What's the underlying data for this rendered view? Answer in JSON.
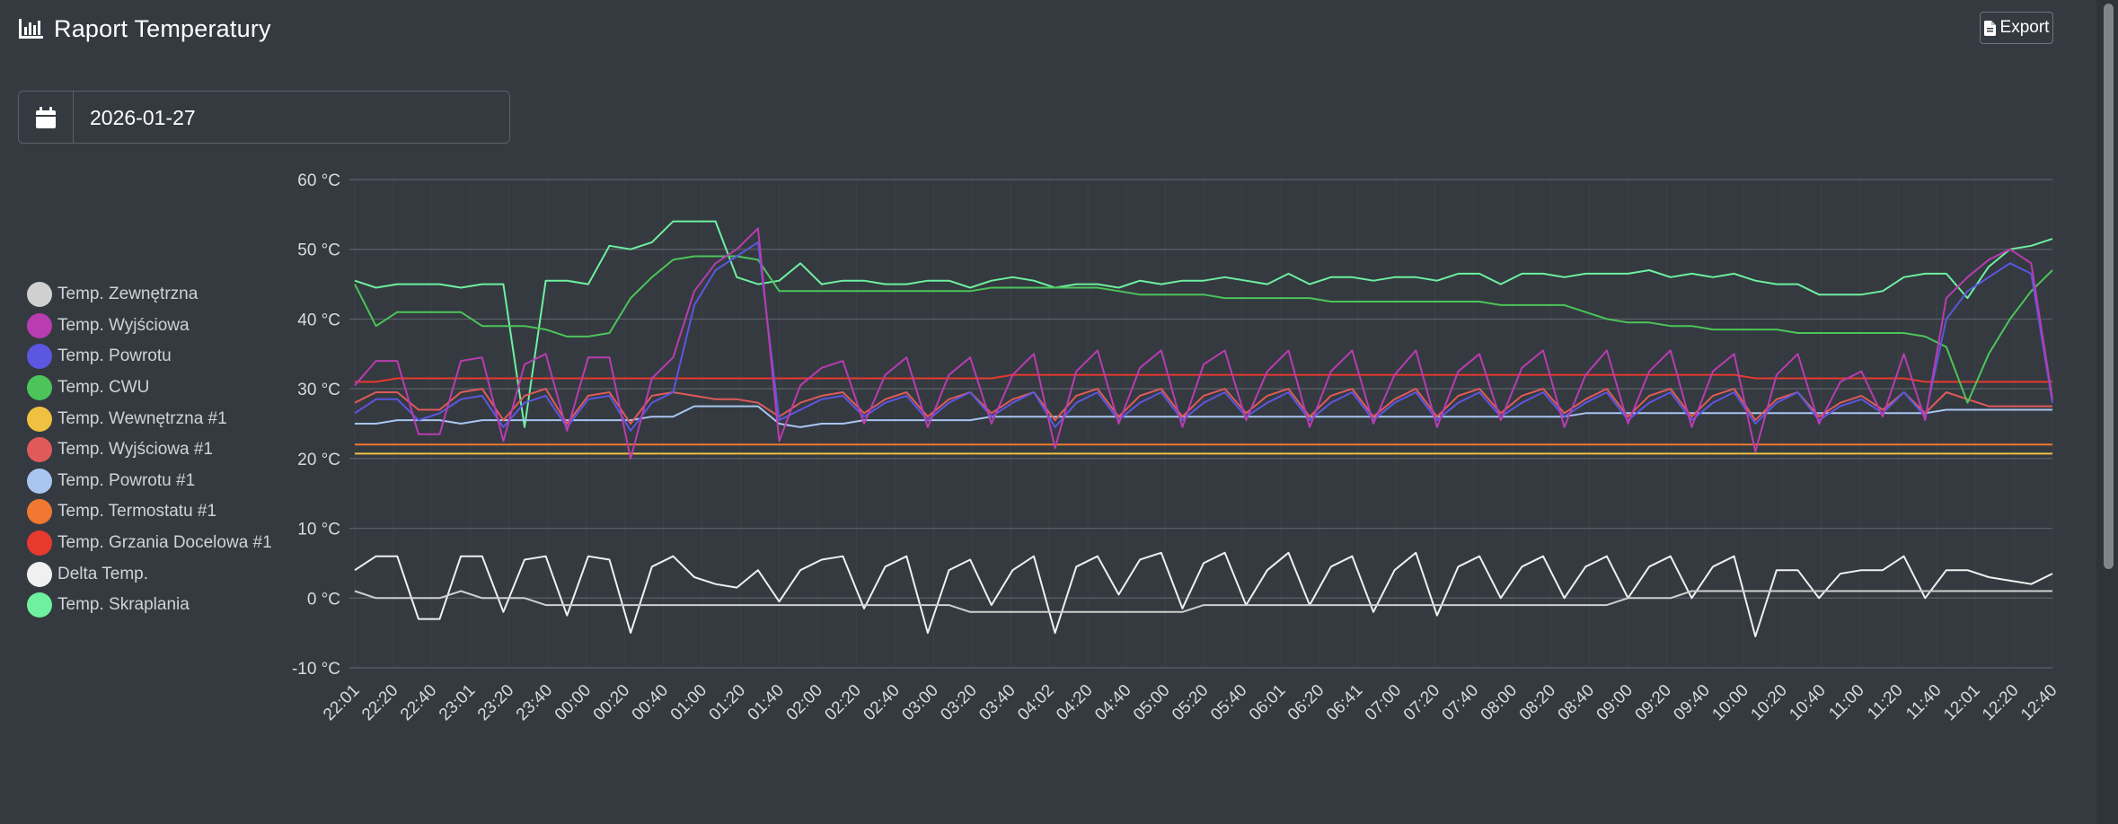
{
  "header": {
    "title": "Raport Temperatury",
    "icon": "chart-bar-icon"
  },
  "toolbar": {
    "export_label": "Export",
    "export_icon": "file-icon"
  },
  "date_picker": {
    "value": "2026-01-27",
    "icon": "calendar-icon"
  },
  "chart_data": {
    "type": "line",
    "title": "",
    "xlabel": "",
    "ylabel": "",
    "ylim": [
      -10,
      60
    ],
    "y_ticks": [
      -10,
      0,
      10,
      20,
      30,
      40,
      50,
      60
    ],
    "y_tick_labels": [
      "-10 °C",
      "0 °C",
      "10 °C",
      "20 °C",
      "30 °C",
      "40 °C",
      "50 °C",
      "60 °C"
    ],
    "x_tick_labels": [
      "22:01",
      "22:20",
      "22:40",
      "23:01",
      "23:20",
      "23:40",
      "00:00",
      "00:20",
      "00:40",
      "01:00",
      "01:20",
      "01:40",
      "02:00",
      "02:20",
      "02:40",
      "03:00",
      "03:20",
      "03:40",
      "04:02",
      "04:20",
      "04:40",
      "05:00",
      "05:20",
      "05:40",
      "06:01",
      "06:20",
      "06:41",
      "07:00",
      "07:20",
      "07:40",
      "08:00",
      "08:20",
      "08:40",
      "09:00",
      "09:20",
      "09:40",
      "10:00",
      "10:20",
      "10:40",
      "11:00",
      "11:20",
      "11:40",
      "12:01",
      "12:20",
      "12:40"
    ],
    "grid": true,
    "legend_position": "left",
    "series": [
      {
        "name": "Temp. Zewnętrzna",
        "color": "#d0d0d0",
        "values": [
          1.0,
          0.0,
          0.0,
          0.0,
          0.0,
          1.0,
          0.0,
          0.0,
          0.0,
          -1.0,
          -1.0,
          -1.0,
          -1.0,
          -1.0,
          -1.0,
          -1.0,
          -1.0,
          -1.0,
          -1.0,
          -1.0,
          -1.0,
          -1.0,
          -1.0,
          -1.0,
          -1.0,
          -1.0,
          -1.0,
          -1.0,
          -1.0,
          -2.0,
          -2.0,
          -2.0,
          -2.0,
          -2.0,
          -2.0,
          -2.0,
          -2.0,
          -2.0,
          -2.0,
          -2.0,
          -1.0,
          -1.0,
          -1.0,
          -1.0,
          -1.0,
          -1.0,
          -1.0,
          -1.0,
          -1.0,
          -1.0,
          -1.0,
          -1.0,
          -1.0,
          -1.0,
          -1.0,
          -1.0,
          -1.0,
          -1.0,
          -1.0,
          -1.0,
          0.0,
          0.0,
          0.0,
          1.0,
          1.0,
          1.0,
          1.0,
          1.0,
          1.0,
          1.0,
          1.0,
          1.0,
          1.0,
          1.0,
          1.0,
          1.0,
          1.0,
          1.0,
          1.0,
          1.0,
          1.0
        ]
      },
      {
        "name": "Temp. Wyjściowa",
        "color": "#b93cb1",
        "values": [
          30.5,
          34.0,
          34.0,
          23.5,
          23.5,
          34.0,
          34.5,
          22.5,
          33.5,
          35.0,
          24.0,
          34.5,
          34.5,
          20.0,
          31.5,
          34.5,
          44.0,
          48.0,
          50.0,
          53.0,
          22.5,
          30.5,
          33.0,
          34.0,
          25.0,
          32.0,
          34.5,
          24.5,
          32.0,
          34.5,
          25.0,
          32.0,
          35.0,
          21.5,
          32.5,
          35.5,
          25.0,
          33.0,
          35.5,
          24.5,
          33.5,
          35.5,
          25.5,
          32.5,
          35.5,
          24.5,
          32.5,
          35.5,
          25.0,
          32.0,
          35.5,
          24.5,
          32.5,
          35.0,
          25.5,
          33.0,
          35.5,
          24.5,
          32.0,
          35.5,
          25.0,
          32.5,
          35.5,
          24.5,
          32.5,
          35.0,
          21.0,
          32.0,
          35.0,
          25.0,
          31.0,
          32.5,
          26.0,
          35.0,
          25.5,
          43.0,
          46.0,
          48.5,
          50.0,
          48.0,
          28.5
        ]
      },
      {
        "name": "Temp. Powrotu",
        "color": "#5b57e0",
        "values": [
          26.5,
          28.5,
          28.5,
          25.5,
          26.5,
          28.5,
          29.0,
          24.5,
          28.0,
          29.0,
          24.5,
          28.5,
          29.0,
          24.0,
          28.0,
          29.5,
          42.0,
          47.0,
          49.0,
          51.0,
          25.5,
          27.0,
          28.5,
          29.0,
          26.0,
          28.0,
          29.0,
          25.5,
          28.0,
          29.5,
          26.0,
          28.0,
          29.5,
          24.5,
          28.0,
          29.5,
          25.5,
          28.0,
          29.5,
          25.5,
          28.0,
          29.5,
          26.0,
          28.0,
          29.5,
          25.5,
          28.0,
          29.5,
          25.5,
          28.0,
          29.5,
          25.5,
          28.0,
          29.5,
          26.0,
          28.0,
          29.5,
          26.0,
          28.0,
          29.5,
          25.5,
          28.0,
          29.5,
          25.5,
          28.0,
          29.5,
          25.0,
          28.0,
          29.5,
          25.5,
          27.5,
          28.5,
          26.5,
          29.5,
          26.0,
          40.0,
          44.0,
          46.0,
          48.0,
          46.5,
          28.0
        ]
      },
      {
        "name": "Temp. CWU",
        "color": "#4cc45a",
        "values": [
          45.0,
          39.0,
          41.0,
          41.0,
          41.0,
          41.0,
          39.0,
          39.0,
          39.0,
          38.5,
          37.5,
          37.5,
          38.0,
          43.0,
          46.0,
          48.5,
          49.0,
          49.0,
          49.0,
          48.5,
          44.0,
          44.0,
          44.0,
          44.0,
          44.0,
          44.0,
          44.0,
          44.0,
          44.0,
          44.0,
          44.5,
          44.5,
          44.5,
          44.5,
          44.5,
          44.5,
          44.0,
          43.5,
          43.5,
          43.5,
          43.5,
          43.0,
          43.0,
          43.0,
          43.0,
          43.0,
          42.5,
          42.5,
          42.5,
          42.5,
          42.5,
          42.5,
          42.5,
          42.5,
          42.0,
          42.0,
          42.0,
          42.0,
          41.0,
          40.0,
          39.5,
          39.5,
          39.0,
          39.0,
          38.5,
          38.5,
          38.5,
          38.5,
          38.0,
          38.0,
          38.0,
          38.0,
          38.0,
          38.0,
          37.5,
          36.0,
          28.0,
          35.0,
          40.0,
          44.0,
          47.0
        ]
      },
      {
        "name": "Temp. Wewnętrzna #1",
        "color": "#f0c040",
        "values": [
          20.7,
          20.7,
          20.7,
          20.7,
          20.7,
          20.7,
          20.7,
          20.7,
          20.7,
          20.7,
          20.7,
          20.7,
          20.7,
          20.7,
          20.7,
          20.7,
          20.7,
          20.7,
          20.7,
          20.7,
          20.7,
          20.7,
          20.7,
          20.7,
          20.7,
          20.7,
          20.7,
          20.7,
          20.7,
          20.7,
          20.7,
          20.7,
          20.7,
          20.7,
          20.7,
          20.7,
          20.7,
          20.7,
          20.7,
          20.7,
          20.7,
          20.7,
          20.7,
          20.7,
          20.7,
          20.7,
          20.7,
          20.7,
          20.7,
          20.7,
          20.7,
          20.7,
          20.7,
          20.7,
          20.7,
          20.7,
          20.7,
          20.7,
          20.7,
          20.7,
          20.7,
          20.7,
          20.7,
          20.7,
          20.7,
          20.7,
          20.7,
          20.7,
          20.7,
          20.7,
          20.7,
          20.7,
          20.7,
          20.7,
          20.7,
          20.7,
          20.7,
          20.7,
          20.7,
          20.7,
          20.7
        ]
      },
      {
        "name": "Temp. Wyjściowa #1",
        "color": "#e05a5a",
        "values": [
          28.0,
          29.5,
          29.5,
          27.0,
          27.0,
          29.5,
          30.0,
          25.5,
          29.0,
          30.0,
          25.0,
          29.0,
          29.5,
          25.0,
          29.0,
          29.5,
          29.0,
          28.5,
          28.5,
          28.0,
          26.0,
          28.0,
          29.0,
          29.5,
          26.5,
          28.5,
          29.5,
          26.0,
          28.5,
          29.5,
          26.5,
          28.5,
          29.5,
          25.5,
          29.0,
          30.0,
          26.0,
          29.0,
          30.0,
          26.0,
          29.0,
          30.0,
          26.5,
          29.0,
          30.0,
          26.0,
          29.0,
          30.0,
          26.0,
          28.5,
          30.0,
          26.0,
          29.0,
          30.0,
          26.5,
          29.0,
          30.0,
          26.5,
          28.5,
          30.0,
          26.0,
          29.0,
          30.0,
          26.0,
          29.0,
          30.0,
          25.5,
          28.5,
          29.5,
          26.0,
          28.0,
          29.0,
          27.0,
          29.5,
          26.5,
          29.5,
          28.5,
          27.5,
          27.5,
          27.5,
          27.5
        ]
      },
      {
        "name": "Temp. Powrotu #1",
        "color": "#a8c6f0",
        "values": [
          25.0,
          25.0,
          25.5,
          25.5,
          25.5,
          25.0,
          25.5,
          25.5,
          25.5,
          25.5,
          25.5,
          25.5,
          25.5,
          25.5,
          26.0,
          26.0,
          27.5,
          27.5,
          27.5,
          27.5,
          25.0,
          24.5,
          25.0,
          25.0,
          25.5,
          25.5,
          25.5,
          25.5,
          25.5,
          25.5,
          26.0,
          26.0,
          26.0,
          26.0,
          26.0,
          26.0,
          26.0,
          26.0,
          26.0,
          26.0,
          26.0,
          26.0,
          26.0,
          26.0,
          26.0,
          26.0,
          26.0,
          26.0,
          26.0,
          26.0,
          26.0,
          26.0,
          26.0,
          26.0,
          26.0,
          26.0,
          26.0,
          26.0,
          26.5,
          26.5,
          26.5,
          26.5,
          26.5,
          26.5,
          26.5,
          26.5,
          26.5,
          26.5,
          26.5,
          26.5,
          26.5,
          26.5,
          26.5,
          26.5,
          26.5,
          27.0,
          27.0,
          27.0,
          27.0,
          27.0,
          27.0
        ]
      },
      {
        "name": "Temp. Termostatu #1",
        "color": "#f07830",
        "values": [
          22.0,
          22.0,
          22.0,
          22.0,
          22.0,
          22.0,
          22.0,
          22.0,
          22.0,
          22.0,
          22.0,
          22.0,
          22.0,
          22.0,
          22.0,
          22.0,
          22.0,
          22.0,
          22.0,
          22.0,
          22.0,
          22.0,
          22.0,
          22.0,
          22.0,
          22.0,
          22.0,
          22.0,
          22.0,
          22.0,
          22.0,
          22.0,
          22.0,
          22.0,
          22.0,
          22.0,
          22.0,
          22.0,
          22.0,
          22.0,
          22.0,
          22.0,
          22.0,
          22.0,
          22.0,
          22.0,
          22.0,
          22.0,
          22.0,
          22.0,
          22.0,
          22.0,
          22.0,
          22.0,
          22.0,
          22.0,
          22.0,
          22.0,
          22.0,
          22.0,
          22.0,
          22.0,
          22.0,
          22.0,
          22.0,
          22.0,
          22.0,
          22.0,
          22.0,
          22.0,
          22.0,
          22.0,
          22.0,
          22.0,
          22.0,
          22.0,
          22.0,
          22.0,
          22.0,
          22.0,
          22.0
        ]
      },
      {
        "name": "Temp. Grzania Docelowa #1",
        "color": "#e8392f",
        "values": [
          31.0,
          31.0,
          31.5,
          31.5,
          31.5,
          31.5,
          31.5,
          31.5,
          31.5,
          31.5,
          31.5,
          31.5,
          31.5,
          31.5,
          31.5,
          31.5,
          31.5,
          31.5,
          31.5,
          31.5,
          31.5,
          31.5,
          31.5,
          31.5,
          31.5,
          31.5,
          31.5,
          31.5,
          31.5,
          31.5,
          31.5,
          32.0,
          32.0,
          32.0,
          32.0,
          32.0,
          32.0,
          32.0,
          32.0,
          32.0,
          32.0,
          32.0,
          32.0,
          32.0,
          32.0,
          32.0,
          32.0,
          32.0,
          32.0,
          32.0,
          32.0,
          32.0,
          32.0,
          32.0,
          32.0,
          32.0,
          32.0,
          32.0,
          32.0,
          32.0,
          32.0,
          32.0,
          32.0,
          32.0,
          32.0,
          32.0,
          31.5,
          31.5,
          31.5,
          31.5,
          31.5,
          31.5,
          31.5,
          31.5,
          31.0,
          31.0,
          31.0,
          31.0,
          31.0,
          31.0,
          31.0
        ]
      },
      {
        "name": "Delta Temp.",
        "color": "#f0f0f0",
        "values": [
          4.0,
          6.0,
          6.0,
          -3.0,
          -3.0,
          6.0,
          6.0,
          -2.0,
          5.5,
          6.0,
          -2.5,
          6.0,
          5.5,
          -5.0,
          4.5,
          6.0,
          3.0,
          2.0,
          1.5,
          4.0,
          -0.5,
          4.0,
          5.5,
          6.0,
          -1.5,
          4.5,
          6.0,
          -5.0,
          4.0,
          5.5,
          -1.0,
          4.0,
          6.0,
          -5.0,
          4.5,
          6.0,
          0.5,
          5.5,
          6.5,
          -1.5,
          5.0,
          6.5,
          -1.0,
          4.0,
          6.5,
          -1.0,
          4.5,
          6.0,
          -2.0,
          4.0,
          6.5,
          -2.5,
          4.5,
          6.0,
          0.0,
          4.5,
          6.0,
          0.0,
          4.5,
          6.0,
          0.0,
          4.5,
          6.0,
          0.0,
          4.5,
          6.0,
          -5.5,
          4.0,
          4.0,
          0.0,
          3.5,
          4.0,
          4.0,
          6.0,
          0.0,
          4.0,
          4.0,
          3.0,
          2.5,
          2.0,
          3.5
        ]
      },
      {
        "name": "Temp. Skraplania",
        "color": "#6ef0a0",
        "values": [
          45.5,
          44.5,
          45.0,
          45.0,
          45.0,
          44.5,
          45.0,
          45.0,
          24.5,
          45.5,
          45.5,
          45.0,
          50.5,
          50.0,
          51.0,
          54.0,
          54.0,
          54.0,
          46.0,
          45.0,
          45.5,
          48.0,
          45.0,
          45.5,
          45.5,
          45.0,
          45.0,
          45.5,
          45.5,
          44.5,
          45.5,
          46.0,
          45.5,
          44.5,
          45.0,
          45.0,
          44.5,
          45.5,
          45.0,
          45.5,
          45.5,
          46.0,
          45.5,
          45.0,
          46.5,
          45.0,
          46.0,
          46.0,
          45.5,
          46.0,
          46.0,
          45.5,
          46.5,
          46.5,
          45.0,
          46.5,
          46.5,
          46.0,
          46.5,
          46.5,
          46.5,
          47.0,
          46.0,
          46.5,
          46.0,
          46.5,
          45.5,
          45.0,
          45.0,
          43.5,
          43.5,
          43.5,
          44.0,
          46.0,
          46.5,
          46.5,
          43.0,
          47.5,
          50.0,
          50.5,
          51.5
        ]
      }
    ]
  }
}
